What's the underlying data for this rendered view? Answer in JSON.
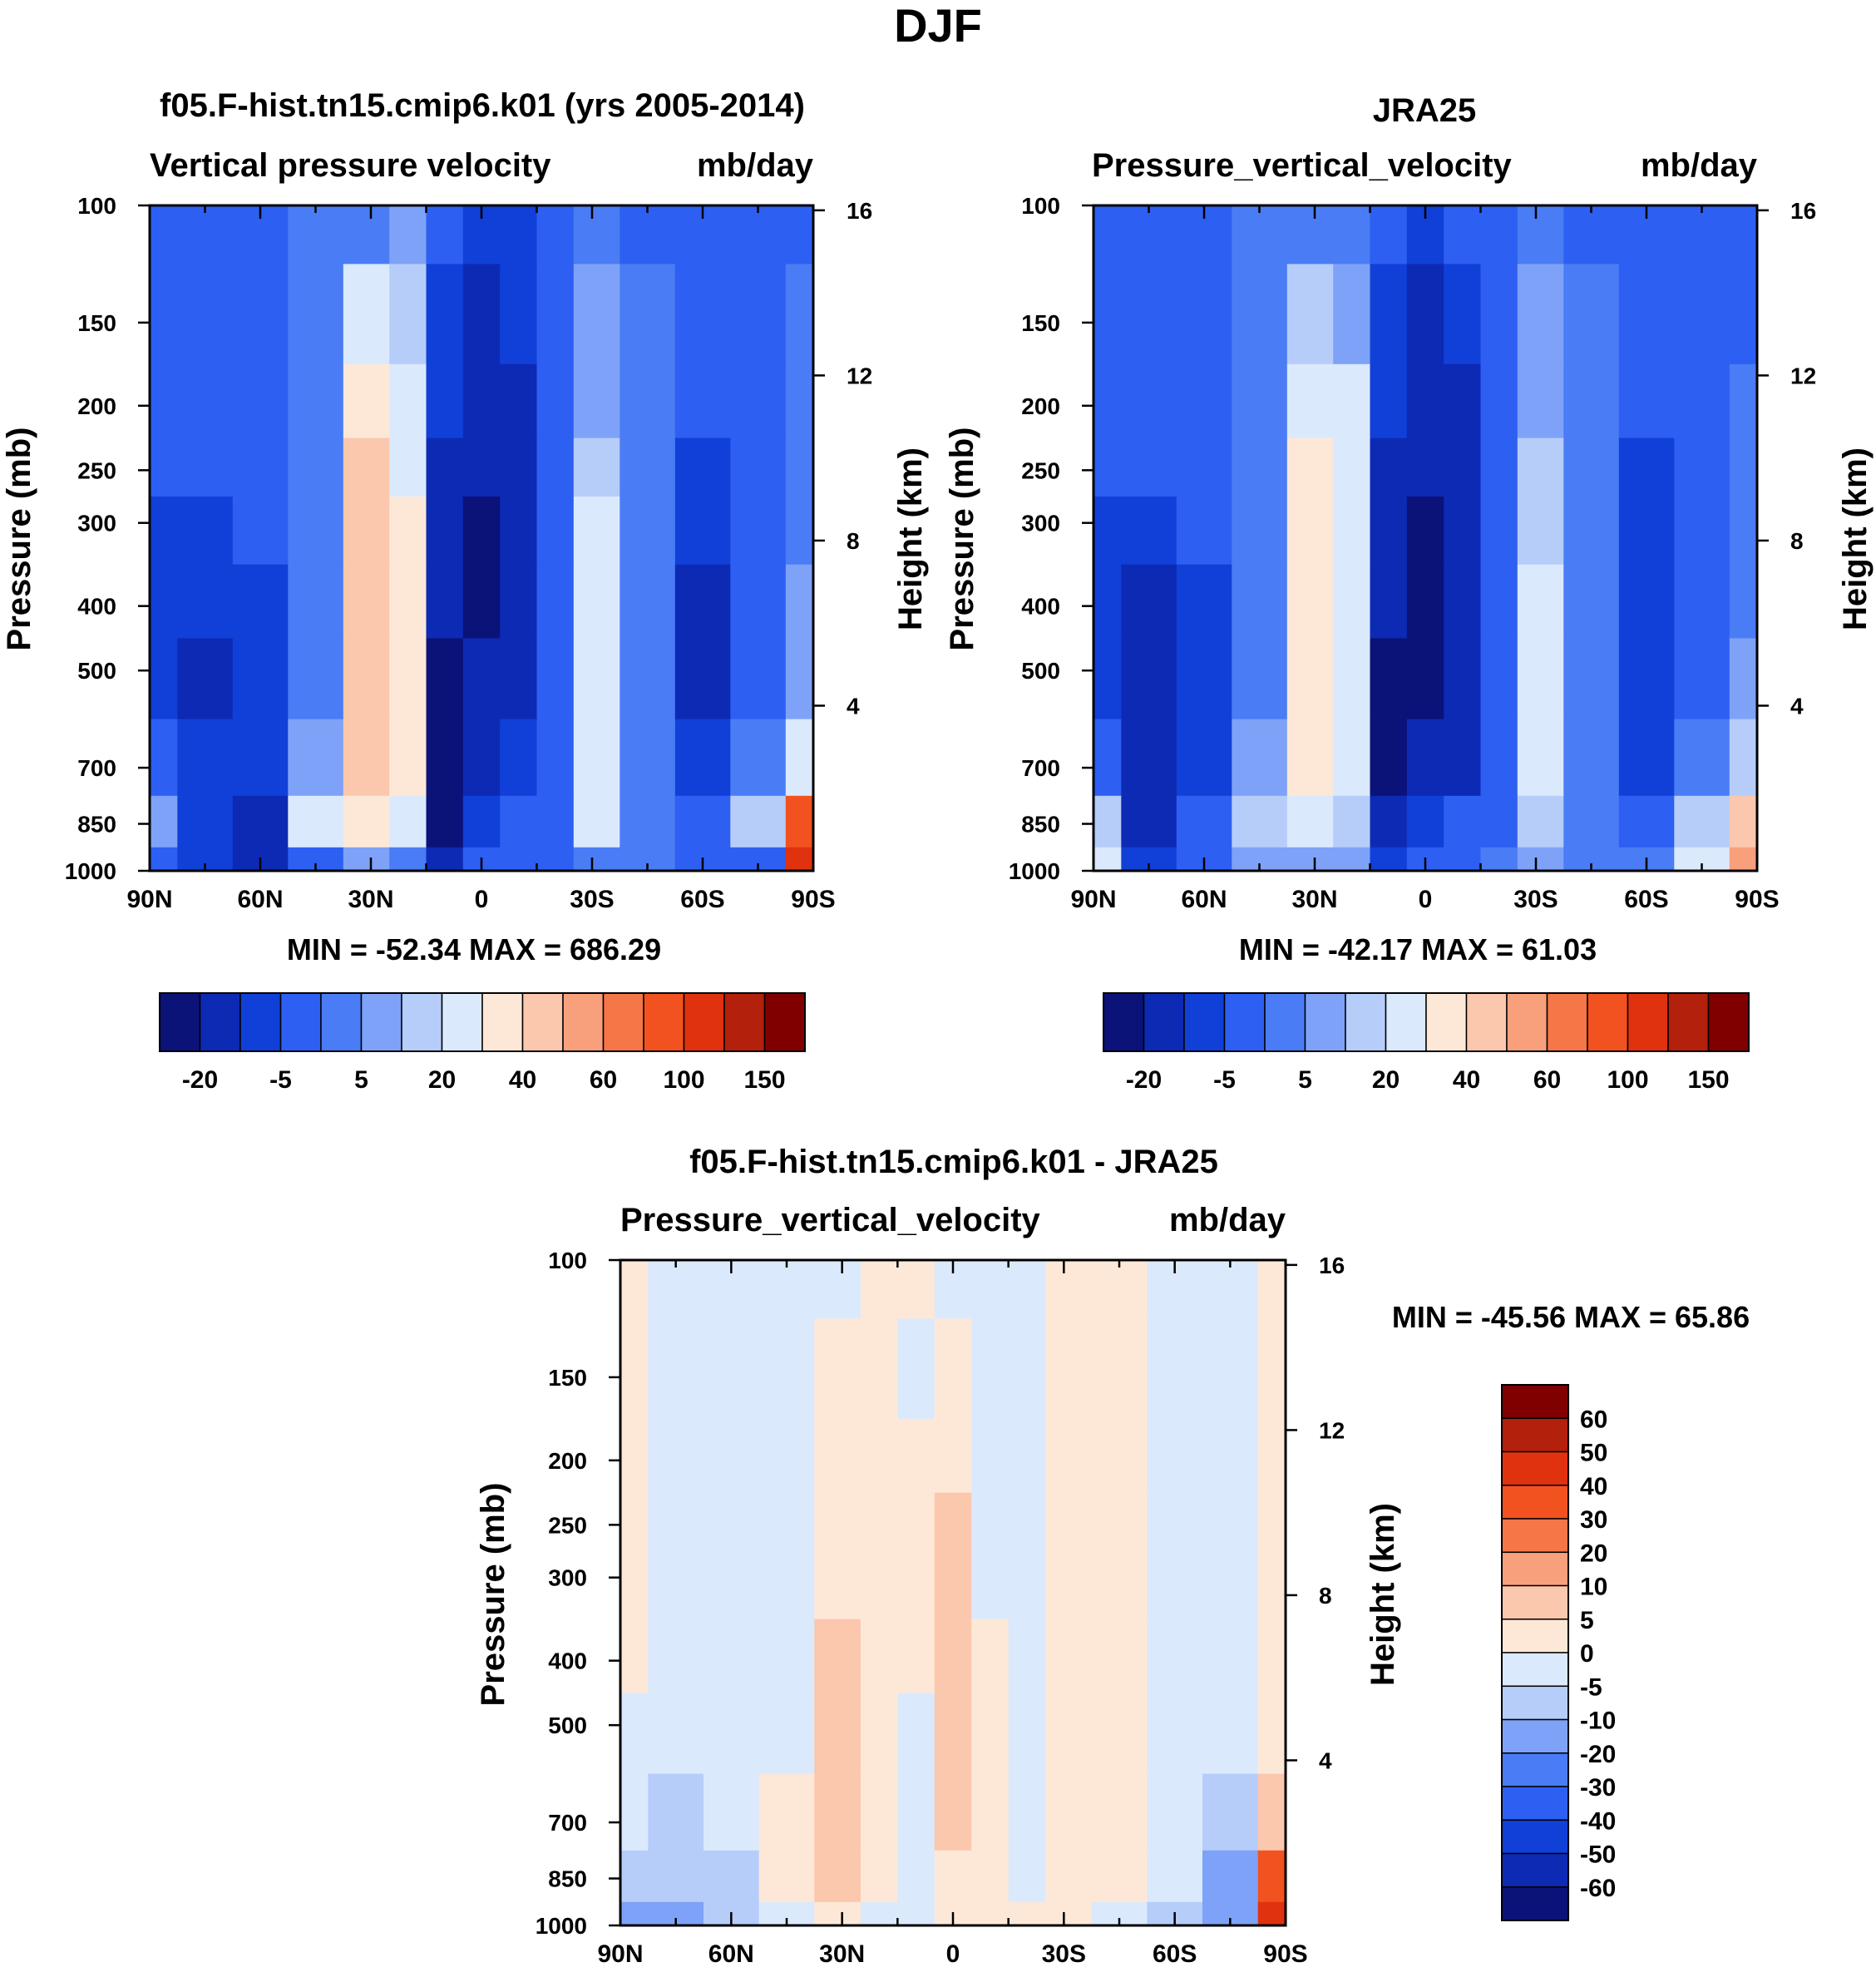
{
  "figure_title": "DJF",
  "chart_data": [
    {
      "type": "heatmap",
      "panel": "model",
      "title": "f05.F-hist.tn15.cmip6.k01 (yrs 2005-2014)",
      "subtitle_left": "Vertical pressure velocity",
      "subtitle_right": "mb/day",
      "ylabel": "Pressure (mb)",
      "ylabel_right": "Height (km)",
      "x_ticks": [
        "90N",
        "60N",
        "30N",
        "0",
        "30S",
        "60S",
        "90S"
      ],
      "xlim": [
        90,
        -90
      ],
      "y_ticks": [
        100,
        150,
        200,
        250,
        300,
        400,
        500,
        700,
        850,
        1000
      ],
      "ylim": [
        1000,
        100
      ],
      "y_scale": "log",
      "height_ticks": [
        16,
        12,
        8,
        4
      ],
      "stats": "MIN = -52.34  MAX = 686.29",
      "colorbar_labels": [
        "-20",
        "-5",
        "5",
        "20",
        "40",
        "60",
        "100",
        "150"
      ],
      "colorbar_colors": [
        "#0b1278",
        "#0d2ab5",
        "#1140d8",
        "#2d5ff2",
        "#4a7cf5",
        "#7ea2f7",
        "#b6cdfa",
        "#dbe9fc",
        "#fde8d8",
        "#fbc7ad",
        "#f8a07c",
        "#f57646",
        "#f2521f",
        "#e0320e",
        "#b3200c",
        "#800000"
      ],
      "levels_rows": [
        100,
        150,
        200,
        250,
        300,
        400,
        500,
        700,
        850,
        1000
      ],
      "levels_cols": [
        90,
        75,
        60,
        45,
        30,
        20,
        10,
        0,
        -10,
        -20,
        -30,
        -45,
        -60,
        -75,
        -90
      ],
      "values": [
        [
          -8,
          -6,
          -6,
          -5,
          -3,
          1,
          -8,
          -14,
          -12,
          -10,
          -4,
          -6,
          -8,
          -6,
          -6
        ],
        [
          -8,
          -6,
          -6,
          -3,
          12,
          6,
          -12,
          -16,
          -14,
          -10,
          0,
          -4,
          -8,
          -6,
          -5
        ],
        [
          -10,
          -8,
          -6,
          -2,
          22,
          14,
          -14,
          -18,
          -16,
          -10,
          4,
          -4,
          -10,
          -8,
          -5
        ],
        [
          -10,
          -10,
          -8,
          -2,
          30,
          18,
          -16,
          -20,
          -18,
          -10,
          8,
          -2,
          -12,
          -8,
          -4
        ],
        [
          -12,
          -12,
          -10,
          -2,
          34,
          20,
          -18,
          -22,
          -18,
          -10,
          10,
          -2,
          -14,
          -8,
          -2
        ],
        [
          -12,
          -14,
          -12,
          -2,
          36,
          22,
          -20,
          -22,
          -18,
          -10,
          12,
          -2,
          -16,
          -10,
          0
        ],
        [
          -14,
          -16,
          -14,
          -2,
          36,
          22,
          -22,
          -20,
          -16,
          -8,
          14,
          -2,
          -16,
          -10,
          4
        ],
        [
          -10,
          -14,
          -14,
          2,
          34,
          20,
          -22,
          -18,
          -14,
          -8,
          12,
          -2,
          -14,
          -4,
          14
        ],
        [
          4,
          -12,
          -16,
          12,
          24,
          16,
          -22,
          -12,
          -10,
          -6,
          10,
          -2,
          -8,
          8,
          60
        ],
        [
          -8,
          -14,
          -16,
          -6,
          2,
          -2,
          -16,
          -10,
          -8,
          -6,
          -2,
          -4,
          -10,
          -6,
          120
        ]
      ]
    },
    {
      "type": "heatmap",
      "panel": "observations",
      "title": "JRA25",
      "subtitle_left": "Pressure_vertical_velocity",
      "subtitle_right": "mb/day",
      "ylabel": "Pressure (mb)",
      "ylabel_right": "Height (km)",
      "x_ticks": [
        "90N",
        "60N",
        "30N",
        "0",
        "30S",
        "60S",
        "90S"
      ],
      "xlim": [
        90,
        -90
      ],
      "y_ticks": [
        100,
        150,
        200,
        250,
        300,
        400,
        500,
        700,
        850,
        1000
      ],
      "ylim": [
        1000,
        100
      ],
      "y_scale": "log",
      "height_ticks": [
        16,
        12,
        8,
        4
      ],
      "stats": "MIN = -42.17  MAX =  61.03",
      "colorbar_labels": [
        "-20",
        "-5",
        "5",
        "20",
        "40",
        "60",
        "100",
        "150"
      ],
      "colorbar_colors": [
        "#0b1278",
        "#0d2ab5",
        "#1140d8",
        "#2d5ff2",
        "#4a7cf5",
        "#7ea2f7",
        "#b6cdfa",
        "#dbe9fc",
        "#fde8d8",
        "#fbc7ad",
        "#f8a07c",
        "#f57646",
        "#f2521f",
        "#e0320e",
        "#b3200c",
        "#800000"
      ],
      "levels_rows": [
        100,
        150,
        200,
        250,
        300,
        400,
        500,
        700,
        850,
        1000
      ],
      "levels_cols": [
        90,
        75,
        60,
        45,
        30,
        20,
        10,
        0,
        -10,
        -20,
        -30,
        -45,
        -60,
        -75,
        -90
      ],
      "values": [
        [
          -10,
          -8,
          -6,
          -4,
          -2,
          -2,
          -10,
          -12,
          -10,
          -6,
          -4,
          -6,
          -8,
          -6,
          -6
        ],
        [
          -10,
          -8,
          -6,
          -2,
          8,
          4,
          -12,
          -16,
          -12,
          -8,
          0,
          -4,
          -8,
          -6,
          -6
        ],
        [
          -10,
          -8,
          -6,
          -2,
          16,
          10,
          -14,
          -18,
          -16,
          -8,
          4,
          -4,
          -10,
          -6,
          -5
        ],
        [
          -10,
          -10,
          -8,
          -2,
          22,
          14,
          -16,
          -20,
          -18,
          -8,
          6,
          -2,
          -12,
          -8,
          -4
        ],
        [
          -12,
          -14,
          -10,
          -2,
          26,
          16,
          -18,
          -24,
          -20,
          -8,
          8,
          -2,
          -14,
          -8,
          -4
        ],
        [
          -12,
          -16,
          -12,
          -2,
          28,
          18,
          -20,
          -24,
          -20,
          -8,
          10,
          -2,
          -14,
          -8,
          -2
        ],
        [
          -12,
          -18,
          -12,
          -2,
          28,
          18,
          -22,
          -22,
          -18,
          -8,
          10,
          -2,
          -14,
          -8,
          0
        ],
        [
          -8,
          -18,
          -14,
          0,
          22,
          12,
          -22,
          -20,
          -16,
          -8,
          10,
          -2,
          -12,
          -2,
          6
        ],
        [
          6,
          -16,
          -10,
          6,
          10,
          6,
          -20,
          -14,
          -10,
          -6,
          6,
          -2,
          -6,
          8,
          30
        ],
        [
          12,
          -12,
          -6,
          2,
          2,
          0,
          -14,
          -8,
          -6,
          -4,
          2,
          -2,
          -4,
          12,
          40
        ]
      ]
    },
    {
      "type": "heatmap",
      "panel": "difference",
      "title": "f05.F-hist.tn15.cmip6.k01 - JRA25",
      "subtitle_left": "Pressure_vertical_velocity",
      "subtitle_right": "mb/day",
      "ylabel": "Pressure (mb)",
      "ylabel_right": "Height (km)",
      "x_ticks": [
        "90N",
        "60N",
        "30N",
        "0",
        "30S",
        "60S",
        "90S"
      ],
      "xlim": [
        90,
        -90
      ],
      "y_ticks": [
        100,
        150,
        200,
        250,
        300,
        400,
        500,
        700,
        850,
        1000
      ],
      "ylim": [
        1000,
        100
      ],
      "y_scale": "log",
      "height_ticks": [
        16,
        12,
        8,
        4
      ],
      "stats": "MIN = -45.56  MAX =  65.86",
      "colorbar_labels": [
        "60",
        "50",
        "40",
        "30",
        "20",
        "10",
        "5",
        "0",
        "-5",
        "-10",
        "-20",
        "-30",
        "-40",
        "-50",
        "-60"
      ],
      "colorbar_colors": [
        "#800000",
        "#b3200c",
        "#e0320e",
        "#f2521f",
        "#f57646",
        "#f8a07c",
        "#fbc7ad",
        "#fde8d8",
        "#dbe9fc",
        "#b6cdfa",
        "#7ea2f7",
        "#4a7cf5",
        "#2d5ff2",
        "#1140d8",
        "#0d2ab5",
        "#0b1278"
      ],
      "levels_rows": [
        100,
        150,
        200,
        250,
        300,
        400,
        500,
        700,
        850,
        1000
      ],
      "levels_cols": [
        90,
        75,
        60,
        45,
        30,
        20,
        10,
        0,
        -10,
        -20,
        -30,
        -45,
        -60,
        -75,
        -90
      ],
      "values": [
        [
          2,
          -2,
          -2,
          -2,
          -1,
          3,
          2,
          -2,
          -2,
          -4,
          0,
          0,
          -2,
          -2,
          0
        ],
        [
          2,
          -2,
          -2,
          -2,
          3,
          2,
          -1,
          1,
          -2,
          -3,
          1,
          1,
          -1,
          -1,
          1
        ],
        [
          1,
          -2,
          -2,
          -2,
          4,
          3,
          1,
          4,
          -1,
          -2,
          2,
          1,
          -1,
          -1,
          1
        ],
        [
          1,
          -2,
          -2,
          -2,
          4,
          3,
          1,
          6,
          -1,
          -2,
          2,
          1,
          -1,
          -1,
          1
        ],
        [
          1,
          -2,
          -2,
          -2,
          4,
          3,
          1,
          6,
          -1,
          -2,
          2,
          1,
          -1,
          -1,
          2
        ],
        [
          1,
          -2,
          -2,
          -1,
          5,
          3,
          1,
          6,
          1,
          -2,
          2,
          1,
          -2,
          -2,
          2
        ],
        [
          -1,
          -2,
          -3,
          -1,
          5,
          3,
          -1,
          6,
          1,
          -2,
          2,
          1,
          -2,
          -3,
          3
        ],
        [
          -4,
          -6,
          -3,
          1,
          6,
          4,
          -3,
          5,
          1,
          -1,
          2,
          1,
          -3,
          -8,
          8
        ],
        [
          -8,
          -10,
          -8,
          4,
          8,
          4,
          -4,
          3,
          1,
          -1,
          3,
          1,
          -4,
          -16,
          30
        ],
        [
          -14,
          -14,
          -10,
          -4,
          1,
          -1,
          -3,
          2,
          2,
          1,
          2,
          -1,
          -6,
          -18,
          45
        ]
      ]
    }
  ]
}
